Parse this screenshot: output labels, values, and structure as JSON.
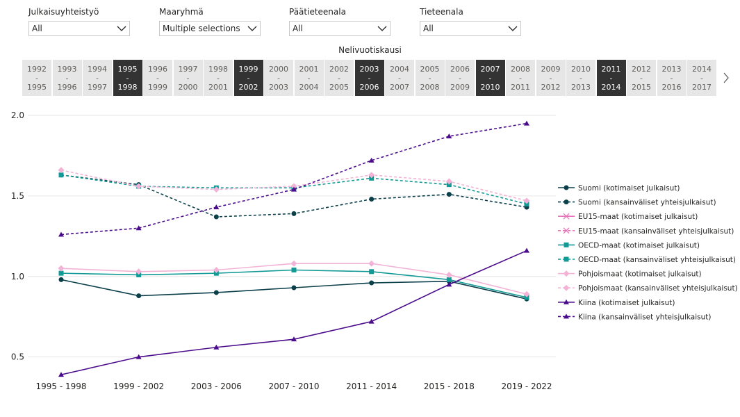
{
  "filters": [
    {
      "label": "Julkaisuyhteistyö",
      "value": "All"
    },
    {
      "label": "Maaryhmä",
      "value": "Multiple selections"
    },
    {
      "label": "Päätieteenala",
      "value": "All"
    },
    {
      "label": "Tieteenala",
      "value": "All"
    }
  ],
  "slicer": {
    "title": "Nelivuotiskausi",
    "items": [
      {
        "start": "1992",
        "end": "1995",
        "selected": false
      },
      {
        "start": "1993",
        "end": "1996",
        "selected": false
      },
      {
        "start": "1994",
        "end": "1997",
        "selected": false
      },
      {
        "start": "1995",
        "end": "1998",
        "selected": true
      },
      {
        "start": "1996",
        "end": "1999",
        "selected": false
      },
      {
        "start": "1997",
        "end": "2000",
        "selected": false
      },
      {
        "start": "1998",
        "end": "2001",
        "selected": false
      },
      {
        "start": "1999",
        "end": "2002",
        "selected": true
      },
      {
        "start": "2000",
        "end": "2003",
        "selected": false
      },
      {
        "start": "2001",
        "end": "2004",
        "selected": false
      },
      {
        "start": "2002",
        "end": "2005",
        "selected": false
      },
      {
        "start": "2003",
        "end": "2006",
        "selected": true
      },
      {
        "start": "2004",
        "end": "2007",
        "selected": false
      },
      {
        "start": "2005",
        "end": "2008",
        "selected": false
      },
      {
        "start": "2006",
        "end": "2009",
        "selected": false
      },
      {
        "start": "2007",
        "end": "2010",
        "selected": true
      },
      {
        "start": "2008",
        "end": "2011",
        "selected": false
      },
      {
        "start": "2009",
        "end": "2012",
        "selected": false
      },
      {
        "start": "2010",
        "end": "2013",
        "selected": false
      },
      {
        "start": "2011",
        "end": "2014",
        "selected": true
      },
      {
        "start": "2012",
        "end": "2015",
        "selected": false
      },
      {
        "start": "2013",
        "end": "2016",
        "selected": false
      },
      {
        "start": "2014",
        "end": "2017",
        "selected": false
      }
    ],
    "separator": "-"
  },
  "chart_data": {
    "type": "line",
    "categories": [
      "1995 - 1998",
      "1999 - 2002",
      "2003 - 2006",
      "2007 - 2010",
      "2011 - 2014",
      "2015 - 2018",
      "2019 - 2022"
    ],
    "ylim": [
      0.3,
      2.0
    ],
    "yticks": [
      0.5,
      1.0,
      1.5,
      2.0
    ],
    "ytick_labels": [
      "0.5",
      "1.0",
      "1.5",
      "2.0"
    ],
    "grid": true,
    "legend_position": "right",
    "series": [
      {
        "name": "Suomi (kotimaiset julkaisut)",
        "color": "#0b3f4a",
        "dash": false,
        "marker": "circle",
        "values": [
          0.98,
          0.88,
          0.9,
          0.93,
          0.96,
          0.97,
          0.86
        ]
      },
      {
        "name": "Suomi (kansainväliset yhteisjulkaisut)",
        "color": "#0b3f4a",
        "dash": true,
        "marker": "circle",
        "values": [
          1.63,
          1.57,
          1.37,
          1.39,
          1.48,
          1.51,
          1.43
        ]
      },
      {
        "name": "EU15-maat (kotimaiset julkaisut)",
        "color": "#e774b8",
        "dash": false,
        "marker": "x",
        "values": [
          null,
          null,
          null,
          null,
          null,
          null,
          null
        ]
      },
      {
        "name": "EU15-maat (kansainväliset yhteisjulkaisut)",
        "color": "#e774b8",
        "dash": true,
        "marker": "x",
        "values": [
          null,
          null,
          null,
          null,
          null,
          null,
          null
        ]
      },
      {
        "name": "OECD-maat (kotimaiset julkaisut)",
        "color": "#119a95",
        "dash": false,
        "marker": "square",
        "values": [
          1.02,
          1.01,
          1.02,
          1.04,
          1.03,
          0.98,
          0.87
        ]
      },
      {
        "name": "OECD-maat (kansainväliset yhteisjulkaisut)",
        "color": "#119a95",
        "dash": true,
        "marker": "square",
        "values": [
          1.63,
          1.56,
          1.55,
          1.55,
          1.61,
          1.57,
          1.45
        ]
      },
      {
        "name": "Pohjoismaat (kotimaiset julkaisut)",
        "color": "#f3b3d6",
        "dash": false,
        "marker": "diamond",
        "values": [
          1.05,
          1.03,
          1.04,
          1.08,
          1.08,
          1.01,
          0.89
        ]
      },
      {
        "name": "Pohjoismaat (kansainväliset yhteisjulkaisut)",
        "color": "#f3b3d6",
        "dash": true,
        "marker": "diamond",
        "values": [
          1.66,
          1.56,
          1.54,
          1.56,
          1.63,
          1.59,
          1.47
        ]
      },
      {
        "name": "Kiina (kotimaiset julkaisut)",
        "color": "#4b0c8c",
        "dash": false,
        "marker": "triangle",
        "values": [
          0.39,
          0.5,
          0.56,
          0.61,
          0.72,
          0.95,
          1.16
        ]
      },
      {
        "name": "Kiina (kansainväliset yhteisjulkaisut)",
        "color": "#4b0c8c",
        "dash": true,
        "marker": "triangle",
        "values": [
          1.26,
          1.3,
          1.43,
          1.54,
          1.72,
          1.87,
          1.95
        ]
      }
    ]
  }
}
